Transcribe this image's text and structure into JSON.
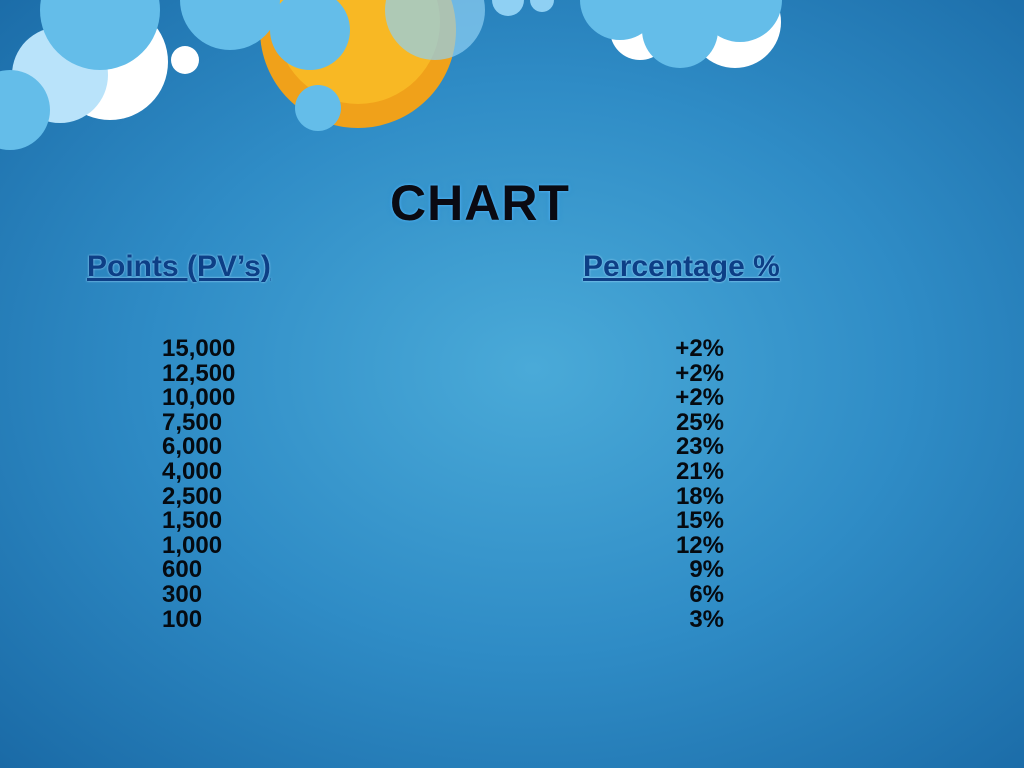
{
  "slide": {
    "title": "CHART",
    "headers": [
      "Points (PV’s)",
      "Percentage %"
    ],
    "rows": [
      [
        "15,000",
        "+2%"
      ],
      [
        "12,500",
        "+2%"
      ],
      [
        "10,000",
        "+2%"
      ],
      [
        "7,500",
        "25%"
      ],
      [
        "6,000",
        "23%"
      ],
      [
        "4,000",
        "21%"
      ],
      [
        "2,500",
        "18%"
      ],
      [
        "1,500",
        "15%"
      ],
      [
        "1,000",
        "12%"
      ],
      [
        "600",
        "9%"
      ],
      [
        "300",
        "6%"
      ],
      [
        "100",
        "3%"
      ]
    ]
  }
}
